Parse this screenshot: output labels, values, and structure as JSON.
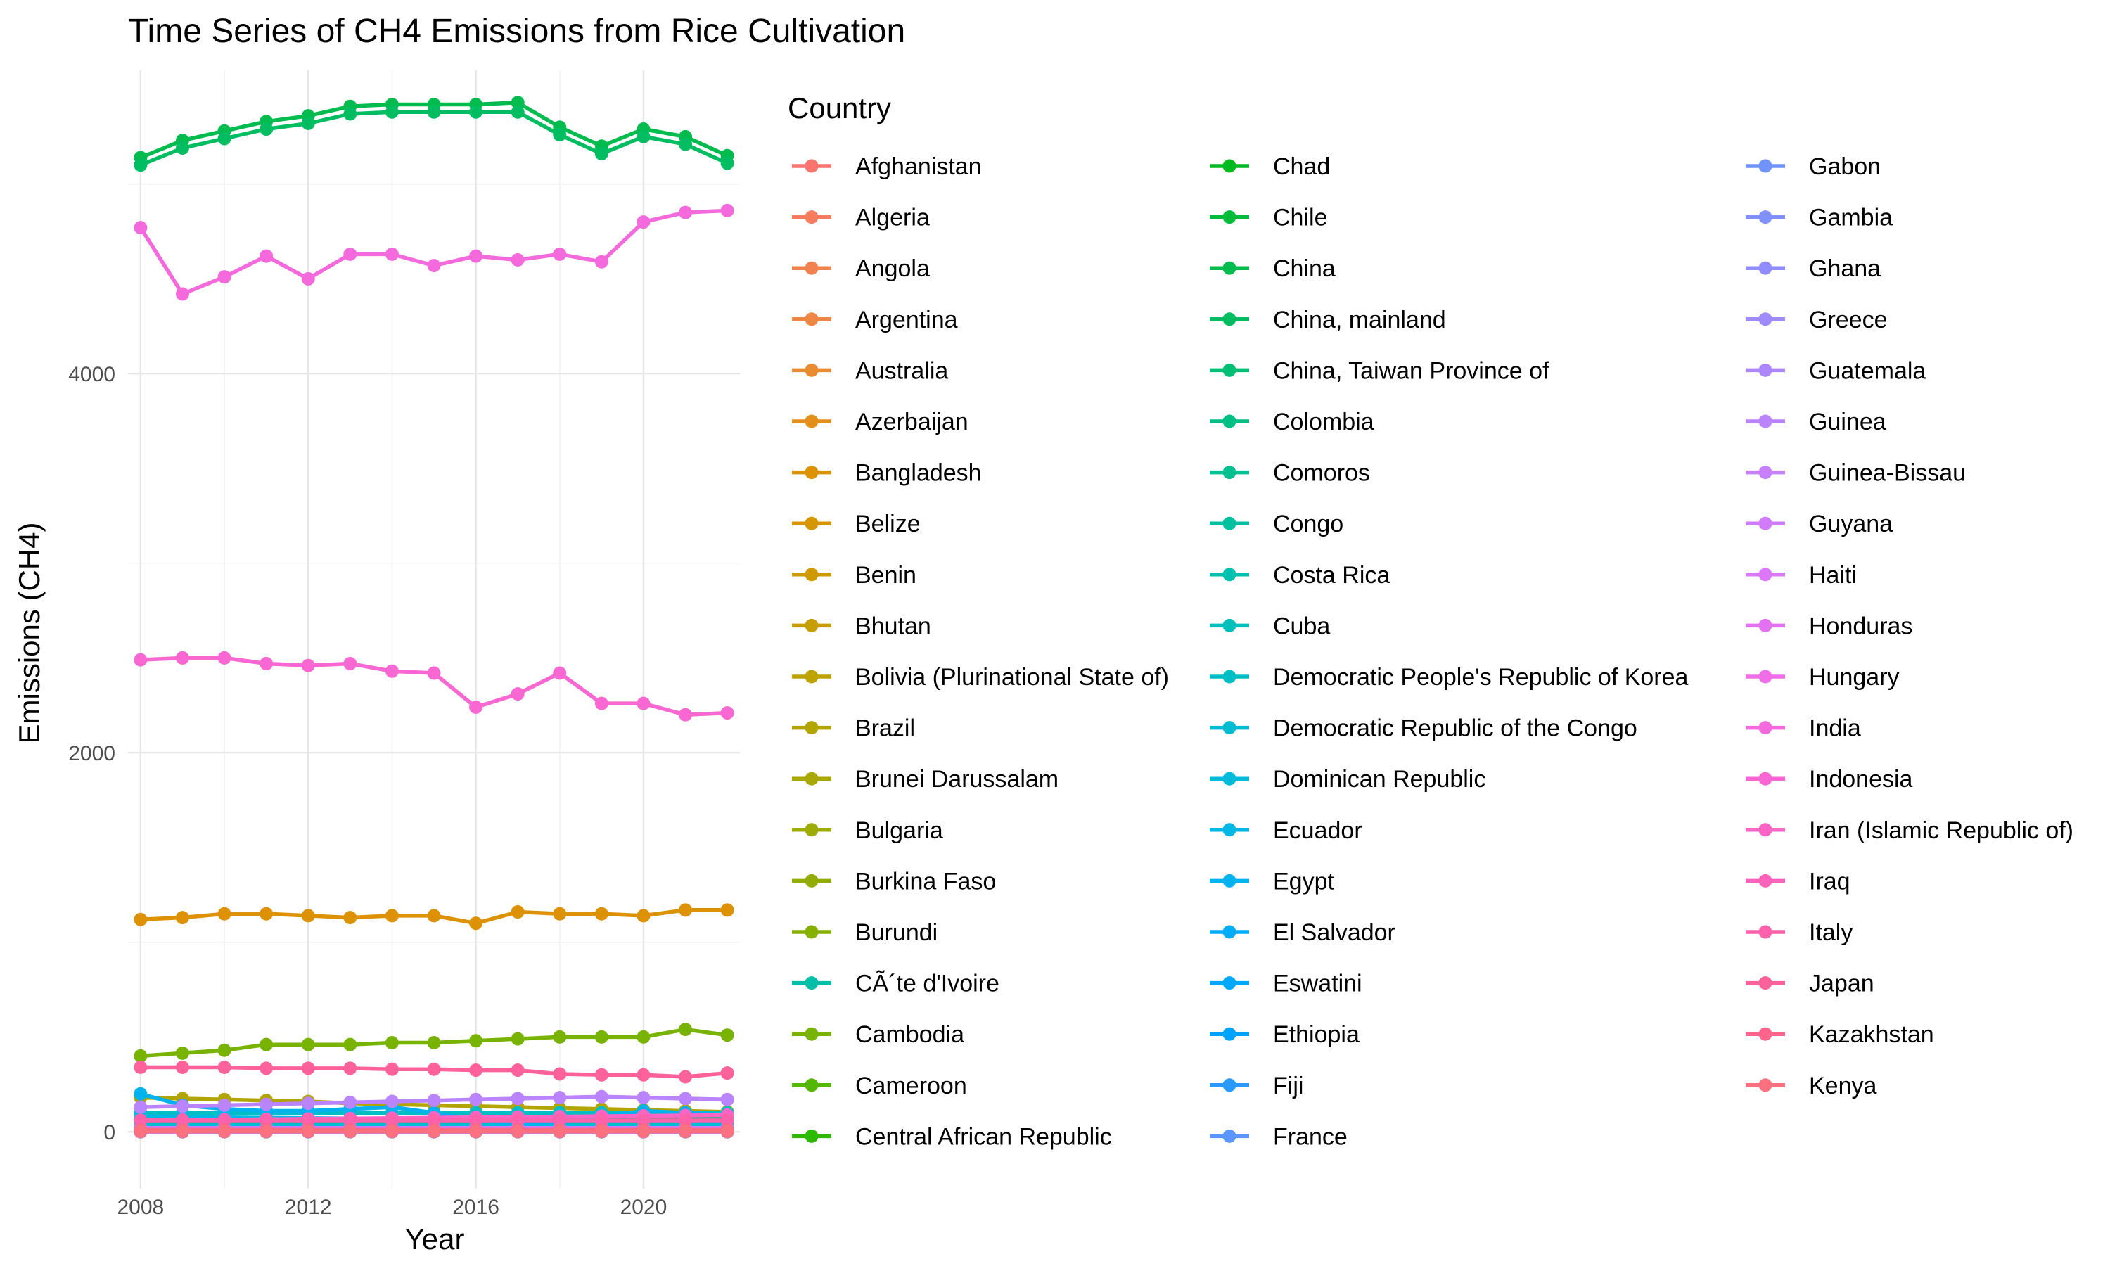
{
  "chart_data": {
    "type": "line",
    "title": "Time Series of CH4 Emissions from Rice Cultivation",
    "xlabel": "Year",
    "ylabel": "Emissions (CH4)",
    "legend_title": "Country",
    "legend_position": "right",
    "grid": true,
    "xlim": [
      2007.7,
      2022.3
    ],
    "ylim": [
      -300,
      5600
    ],
    "x_ticks": [
      2008,
      2012,
      2016,
      2020
    ],
    "y_ticks": [
      0,
      2000,
      4000
    ],
    "x": [
      2008,
      2009,
      2010,
      2011,
      2012,
      2013,
      2014,
      2015,
      2016,
      2017,
      2018,
      2019,
      2020,
      2021,
      2022
    ],
    "series": [
      {
        "name": "Afghanistan",
        "color": "#F8766D",
        "values": [
          23,
          24,
          24,
          25,
          25,
          26,
          26,
          27,
          27,
          28,
          28,
          29,
          29,
          30,
          30
        ]
      },
      {
        "name": "Algeria",
        "color": "#F67C5F",
        "values": [
          0,
          0,
          0,
          0,
          0,
          0,
          0,
          0,
          0,
          0,
          0,
          0,
          0,
          0,
          0
        ]
      },
      {
        "name": "Angola",
        "color": "#F28150",
        "values": [
          1,
          1,
          1,
          1,
          1,
          1,
          1,
          1,
          1,
          1,
          1,
          1,
          1,
          1,
          1
        ]
      },
      {
        "name": "Argentina",
        "color": "#EE8743",
        "values": [
          24,
          24,
          25,
          25,
          26,
          26,
          26,
          27,
          27,
          27,
          28,
          28,
          28,
          29,
          29
        ]
      },
      {
        "name": "Australia",
        "color": "#E98B31",
        "values": [
          6,
          7,
          8,
          9,
          10,
          12,
          14,
          13,
          12,
          11,
          10,
          9,
          8,
          8,
          7
        ]
      },
      {
        "name": "Azerbaijan",
        "color": "#E38F1B",
        "values": [
          1,
          1,
          1,
          1,
          1,
          1,
          1,
          1,
          1,
          1,
          1,
          1,
          1,
          1,
          1
        ]
      },
      {
        "name": "Bangladesh",
        "color": "#DC9204",
        "values": [
          1120,
          1130,
          1150,
          1150,
          1140,
          1130,
          1140,
          1140,
          1100,
          1160,
          1150,
          1150,
          1140,
          1170,
          1170
        ]
      },
      {
        "name": "Belize",
        "color": "#D59600",
        "values": [
          0,
          0,
          0,
          0,
          0,
          0,
          0,
          0,
          0,
          0,
          0,
          0,
          0,
          0,
          0
        ]
      },
      {
        "name": "Benin",
        "color": "#CE9A00",
        "values": [
          10,
          11,
          11,
          12,
          12,
          13,
          13,
          14,
          14,
          15,
          15,
          16,
          16,
          17,
          17
        ]
      },
      {
        "name": "Bhutan",
        "color": "#C69E00",
        "values": [
          4,
          4,
          4,
          4,
          4,
          4,
          4,
          4,
          4,
          4,
          4,
          4,
          4,
          4,
          4
        ]
      },
      {
        "name": "Bolivia (Plurinational State of)",
        "color": "#BDA200",
        "values": [
          24,
          24,
          25,
          25,
          25,
          26,
          26,
          26,
          27,
          27,
          27,
          28,
          28,
          28,
          29
        ]
      },
      {
        "name": "Brazil",
        "color": "#B3A500",
        "values": [
          180,
          175,
          170,
          165,
          160,
          150,
          145,
          140,
          135,
          130,
          125,
          120,
          115,
          110,
          105
        ]
      },
      {
        "name": "Brunei Darussalam",
        "color": "#A9A800",
        "values": [
          0,
          0,
          0,
          0,
          0,
          0,
          0,
          0,
          0,
          0,
          0,
          0,
          0,
          0,
          0
        ]
      },
      {
        "name": "Bulgaria",
        "color": "#9EAB00",
        "values": [
          2,
          2,
          2,
          2,
          2,
          2,
          2,
          2,
          2,
          2,
          2,
          2,
          2,
          2,
          2
        ]
      },
      {
        "name": "Burkina Faso",
        "color": "#92AD00",
        "values": [
          12,
          12,
          13,
          13,
          14,
          14,
          15,
          15,
          16,
          16,
          17,
          17,
          18,
          18,
          19
        ]
      },
      {
        "name": "Burundi",
        "color": "#85B000",
        "values": [
          4,
          4,
          4,
          4,
          4,
          4,
          4,
          4,
          4,
          4,
          4,
          4,
          4,
          4,
          4
        ]
      },
      {
        "name": "CÃ´te d'Ivoire",
        "color": "#00BFA9",
        "values": [
          50,
          52,
          54,
          56,
          58,
          60,
          62,
          64,
          66,
          68,
          70,
          72,
          74,
          76,
          78
        ]
      },
      {
        "name": "Cambodia",
        "color": "#77B300",
        "values": [
          400,
          415,
          430,
          460,
          460,
          460,
          470,
          470,
          480,
          490,
          500,
          500,
          500,
          540,
          510
        ]
      },
      {
        "name": "Cameroon",
        "color": "#55B700",
        "values": [
          5,
          5,
          5,
          5,
          5,
          5,
          5,
          5,
          5,
          5,
          5,
          5,
          5,
          5,
          5
        ]
      },
      {
        "name": "Central African Republic",
        "color": "#2CB900",
        "values": [
          0,
          0,
          0,
          0,
          0,
          0,
          0,
          0,
          0,
          0,
          0,
          0,
          0,
          0,
          0
        ]
      },
      {
        "name": "Chad",
        "color": "#00BA20",
        "values": [
          3,
          3,
          3,
          3,
          3,
          3,
          3,
          3,
          3,
          3,
          3,
          3,
          3,
          3,
          3
        ]
      },
      {
        "name": "Chile",
        "color": "#00BB3A",
        "values": [
          2,
          2,
          2,
          2,
          2,
          2,
          2,
          2,
          2,
          2,
          2,
          2,
          2,
          2,
          2
        ]
      },
      {
        "name": "China",
        "color": "#00BC4F",
        "values": [
          5140,
          5230,
          5280,
          5330,
          5360,
          5410,
          5420,
          5420,
          5420,
          5430,
          5300,
          5200,
          5290,
          5250,
          5150
        ]
      },
      {
        "name": "China, mainland",
        "color": "#00BD62",
        "values": [
          5100,
          5190,
          5240,
          5290,
          5320,
          5370,
          5380,
          5380,
          5380,
          5380,
          5260,
          5160,
          5250,
          5210,
          5110
        ]
      },
      {
        "name": "China, Taiwan Province of",
        "color": "#00BE73",
        "values": [
          60,
          58,
          57,
          56,
          55,
          54,
          53,
          52,
          51,
          50,
          49,
          48,
          47,
          46,
          45
        ]
      },
      {
        "name": "Colombia",
        "color": "#00BF83",
        "values": [
          50,
          52,
          54,
          56,
          58,
          60,
          62,
          64,
          66,
          68,
          70,
          72,
          74,
          76,
          78
        ]
      },
      {
        "name": "Comoros",
        "color": "#00C092",
        "values": [
          0,
          0,
          0,
          0,
          0,
          0,
          0,
          0,
          0,
          0,
          0,
          0,
          0,
          0,
          0
        ]
      },
      {
        "name": "Congo",
        "color": "#00C0A0",
        "values": [
          0,
          0,
          0,
          0,
          0,
          0,
          0,
          0,
          0,
          0,
          0,
          0,
          0,
          0,
          0
        ]
      },
      {
        "name": "Costa Rica",
        "color": "#00C0AD",
        "values": [
          8,
          8,
          8,
          8,
          8,
          8,
          8,
          8,
          8,
          8,
          8,
          8,
          8,
          8,
          8
        ]
      },
      {
        "name": "Cuba",
        "color": "#00BFBA",
        "values": [
          40,
          40,
          40,
          40,
          40,
          40,
          40,
          40,
          40,
          40,
          40,
          40,
          40,
          40,
          40
        ]
      },
      {
        "name": "Democratic People's Republic of Korea",
        "color": "#00BEC6",
        "values": [
          100,
          100,
          100,
          100,
          100,
          100,
          100,
          100,
          100,
          100,
          100,
          100,
          100,
          100,
          100
        ]
      },
      {
        "name": "Democratic Republic of the Congo",
        "color": "#00BCD1",
        "values": [
          20,
          20,
          20,
          21,
          21,
          21,
          22,
          22,
          22,
          23,
          23,
          23,
          24,
          24,
          24
        ]
      },
      {
        "name": "Dominican Republic",
        "color": "#00BADC",
        "values": [
          30,
          30,
          30,
          30,
          30,
          30,
          30,
          30,
          30,
          30,
          30,
          30,
          30,
          30,
          30
        ]
      },
      {
        "name": "Ecuador",
        "color": "#00B7E6",
        "values": [
          80,
          78,
          76,
          74,
          72,
          70,
          68,
          66,
          64,
          62,
          60,
          58,
          56,
          54,
          52
        ]
      },
      {
        "name": "Egypt",
        "color": "#00B3EF",
        "values": [
          200,
          140,
          120,
          110,
          110,
          120,
          130,
          100,
          60,
          40,
          50,
          80,
          110,
          100,
          90
        ]
      },
      {
        "name": "El Salvador",
        "color": "#00AEF8",
        "values": [
          1,
          1,
          1,
          1,
          1,
          1,
          1,
          1,
          1,
          1,
          1,
          1,
          1,
          1,
          1
        ]
      },
      {
        "name": "Eswatini",
        "color": "#00A9FF",
        "values": [
          0,
          0,
          0,
          0,
          0,
          0,
          0,
          0,
          0,
          0,
          0,
          0,
          0,
          0,
          0
        ]
      },
      {
        "name": "Ethiopia",
        "color": "#00A3FF",
        "values": [
          5,
          5,
          5,
          5,
          5,
          5,
          5,
          5,
          5,
          5,
          5,
          5,
          5,
          5,
          5
        ]
      },
      {
        "name": "Fiji",
        "color": "#2A9AFF",
        "values": [
          1,
          1,
          1,
          1,
          1,
          1,
          1,
          1,
          1,
          1,
          1,
          1,
          1,
          1,
          1
        ]
      },
      {
        "name": "France",
        "color": "#5B96FF",
        "values": [
          5,
          5,
          5,
          5,
          5,
          5,
          5,
          5,
          5,
          5,
          5,
          5,
          5,
          5,
          5
        ]
      },
      {
        "name": "Gabon",
        "color": "#6F93FF",
        "values": [
          0,
          0,
          0,
          0,
          0,
          0,
          0,
          0,
          0,
          0,
          0,
          0,
          0,
          0,
          0
        ]
      },
      {
        "name": "Gambia",
        "color": "#8190FF",
        "values": [
          2,
          2,
          2,
          2,
          2,
          2,
          2,
          2,
          2,
          2,
          2,
          2,
          2,
          2,
          2
        ]
      },
      {
        "name": "Ghana",
        "color": "#918DFF",
        "values": [
          10,
          11,
          11,
          12,
          12,
          13,
          13,
          14,
          14,
          15,
          15,
          16,
          16,
          17,
          17
        ]
      },
      {
        "name": "Greece",
        "color": "#A08AFF",
        "values": [
          5,
          5,
          5,
          5,
          5,
          5,
          5,
          5,
          5,
          5,
          5,
          5,
          5,
          5,
          5
        ]
      },
      {
        "name": "Guatemala",
        "color": "#AD87FF",
        "values": [
          1,
          1,
          1,
          1,
          1,
          1,
          1,
          1,
          1,
          1,
          1,
          1,
          1,
          1,
          1
        ]
      },
      {
        "name": "Guinea",
        "color": "#BA84FF",
        "values": [
          130,
          135,
          140,
          145,
          150,
          155,
          160,
          165,
          170,
          175,
          180,
          185,
          180,
          175,
          170
        ]
      },
      {
        "name": "Guinea-Bissau",
        "color": "#C67FFF",
        "values": [
          10,
          10,
          10,
          10,
          10,
          10,
          10,
          10,
          10,
          10,
          10,
          10,
          10,
          10,
          10
        ]
      },
      {
        "name": "Guyana",
        "color": "#D17BFF",
        "values": [
          20,
          20,
          20,
          20,
          20,
          20,
          20,
          20,
          20,
          20,
          20,
          20,
          20,
          20,
          20
        ]
      },
      {
        "name": "Haiti",
        "color": "#DB77F8",
        "values": [
          5,
          5,
          5,
          5,
          5,
          5,
          5,
          5,
          5,
          5,
          5,
          5,
          5,
          5,
          5
        ]
      },
      {
        "name": "Honduras",
        "color": "#E472F0",
        "values": [
          1,
          1,
          1,
          1,
          1,
          1,
          1,
          1,
          1,
          1,
          1,
          1,
          1,
          1,
          1
        ]
      },
      {
        "name": "Hungary",
        "color": "#ED6EE7",
        "values": [
          1,
          1,
          1,
          1,
          1,
          1,
          1,
          1,
          1,
          1,
          1,
          1,
          1,
          1,
          1
        ]
      },
      {
        "name": "India",
        "color": "#F46ADD",
        "values": [
          4770,
          4420,
          4510,
          4620,
          4500,
          4630,
          4630,
          4570,
          4620,
          4600,
          4630,
          4590,
          4800,
          4850,
          4860
        ]
      },
      {
        "name": "Indonesia",
        "color": "#F967D2",
        "values": [
          2490,
          2500,
          2500,
          2470,
          2460,
          2470,
          2430,
          2420,
          2240,
          2310,
          2420,
          2260,
          2260,
          2200,
          2210
        ]
      },
      {
        "name": "Iran (Islamic Republic of)",
        "color": "#FD64C5",
        "values": [
          60,
          62,
          64,
          66,
          68,
          70,
          72,
          74,
          76,
          78,
          80,
          82,
          84,
          86,
          88
        ]
      },
      {
        "name": "Iraq",
        "color": "#FF62B8",
        "values": [
          10,
          10,
          10,
          10,
          10,
          10,
          10,
          10,
          10,
          10,
          10,
          10,
          10,
          10,
          10
        ]
      },
      {
        "name": "Italy",
        "color": "#FF61AA",
        "values": [
          60,
          60,
          60,
          60,
          60,
          60,
          60,
          60,
          60,
          60,
          60,
          60,
          60,
          60,
          60
        ]
      },
      {
        "name": "Japan",
        "color": "#FF629A",
        "values": [
          340,
          340,
          340,
          335,
          335,
          335,
          330,
          330,
          325,
          325,
          305,
          300,
          300,
          290,
          310
        ]
      },
      {
        "name": "Kazakhstan",
        "color": "#FF648A",
        "values": [
          10,
          10,
          10,
          10,
          10,
          10,
          10,
          10,
          10,
          10,
          10,
          10,
          10,
          10,
          10
        ]
      },
      {
        "name": "Kenya",
        "color": "#FC717F",
        "values": [
          2,
          2,
          2,
          2,
          2,
          2,
          2,
          2,
          2,
          2,
          2,
          2,
          2,
          2,
          2
        ]
      }
    ]
  }
}
